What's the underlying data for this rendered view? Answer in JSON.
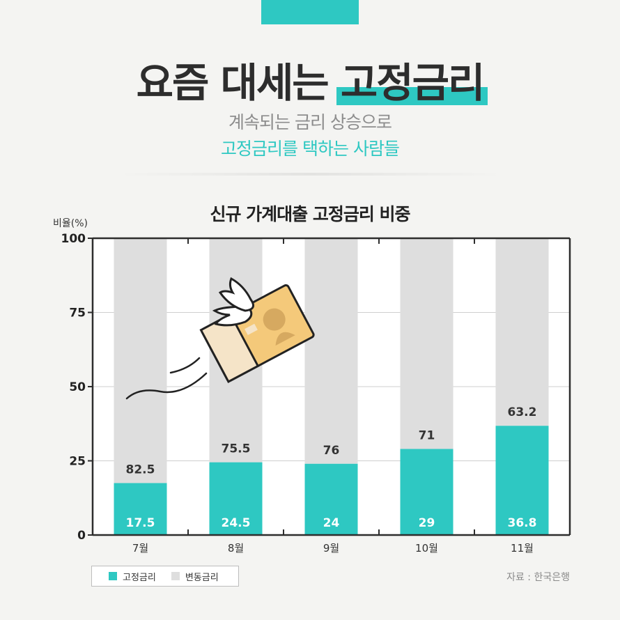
{
  "header": {
    "title_main": "요즘 대세는",
    "title_highlight": "고정금리",
    "subtitle_line1": "계속되는 금리 상승으로",
    "subtitle_line2": "고정금리를 택하는 사람들"
  },
  "chart_data": {
    "type": "bar",
    "stacked": true,
    "title": "신규 가계대출 고정금리 비중",
    "ylabel": "비율(%)",
    "xlabel": "",
    "ylim": [
      0,
      100
    ],
    "yticks": [
      0,
      25,
      50,
      75,
      100
    ],
    "categories": [
      "7월",
      "8월",
      "9월",
      "10월",
      "11월"
    ],
    "series": [
      {
        "name": "고정금리",
        "values": [
          17.5,
          24.5,
          24,
          29,
          36.8
        ],
        "color": "#2ec8c2"
      },
      {
        "name": "변동금리",
        "values": [
          82.5,
          75.5,
          76,
          71,
          63.2
        ],
        "color": "#dedede"
      }
    ],
    "grid": true,
    "legend_position": "bottom-left"
  },
  "footer": {
    "source": "자료 : 한국은행"
  },
  "colors": {
    "accent": "#2ec8c2",
    "background": "#f4f4f2",
    "text_dark": "#2d2d2d",
    "text_gray": "#8d8d8d"
  },
  "illustration": {
    "icon": "flying-id-card-with-wings-icon"
  }
}
